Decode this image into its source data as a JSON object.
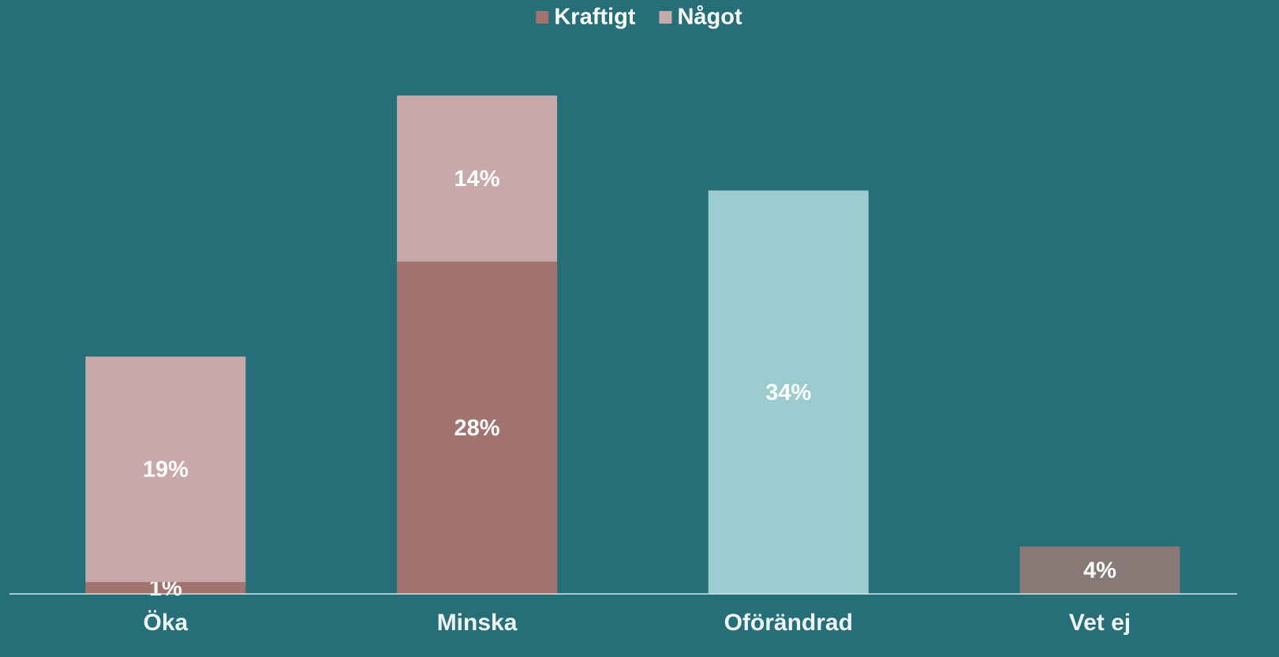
{
  "chart_data": {
    "type": "stacked-bar",
    "categories": [
      "Öka",
      "Minska",
      "Oförändrad",
      "Vet ej"
    ],
    "series": [
      {
        "name": "Kraftigt",
        "color": "#a37370",
        "values": [
          1,
          28,
          null,
          null
        ],
        "value_labels": [
          "1%",
          "28%",
          null,
          null
        ]
      },
      {
        "name": "Något",
        "color": "#c8a9aa",
        "values": [
          19,
          14,
          null,
          null
        ],
        "value_labels": [
          "19%",
          "14%",
          null,
          null
        ]
      },
      {
        "color": "#9ccbd0",
        "values": [
          null,
          null,
          34,
          null
        ],
        "value_labels": [
          null,
          null,
          "34%",
          null
        ]
      },
      {
        "color": "#877a76",
        "values": [
          null,
          null,
          null,
          4
        ],
        "value_labels": [
          null,
          null,
          null,
          "4%"
        ]
      }
    ],
    "ylim": [
      0,
      45
    ],
    "legend": "top"
  }
}
